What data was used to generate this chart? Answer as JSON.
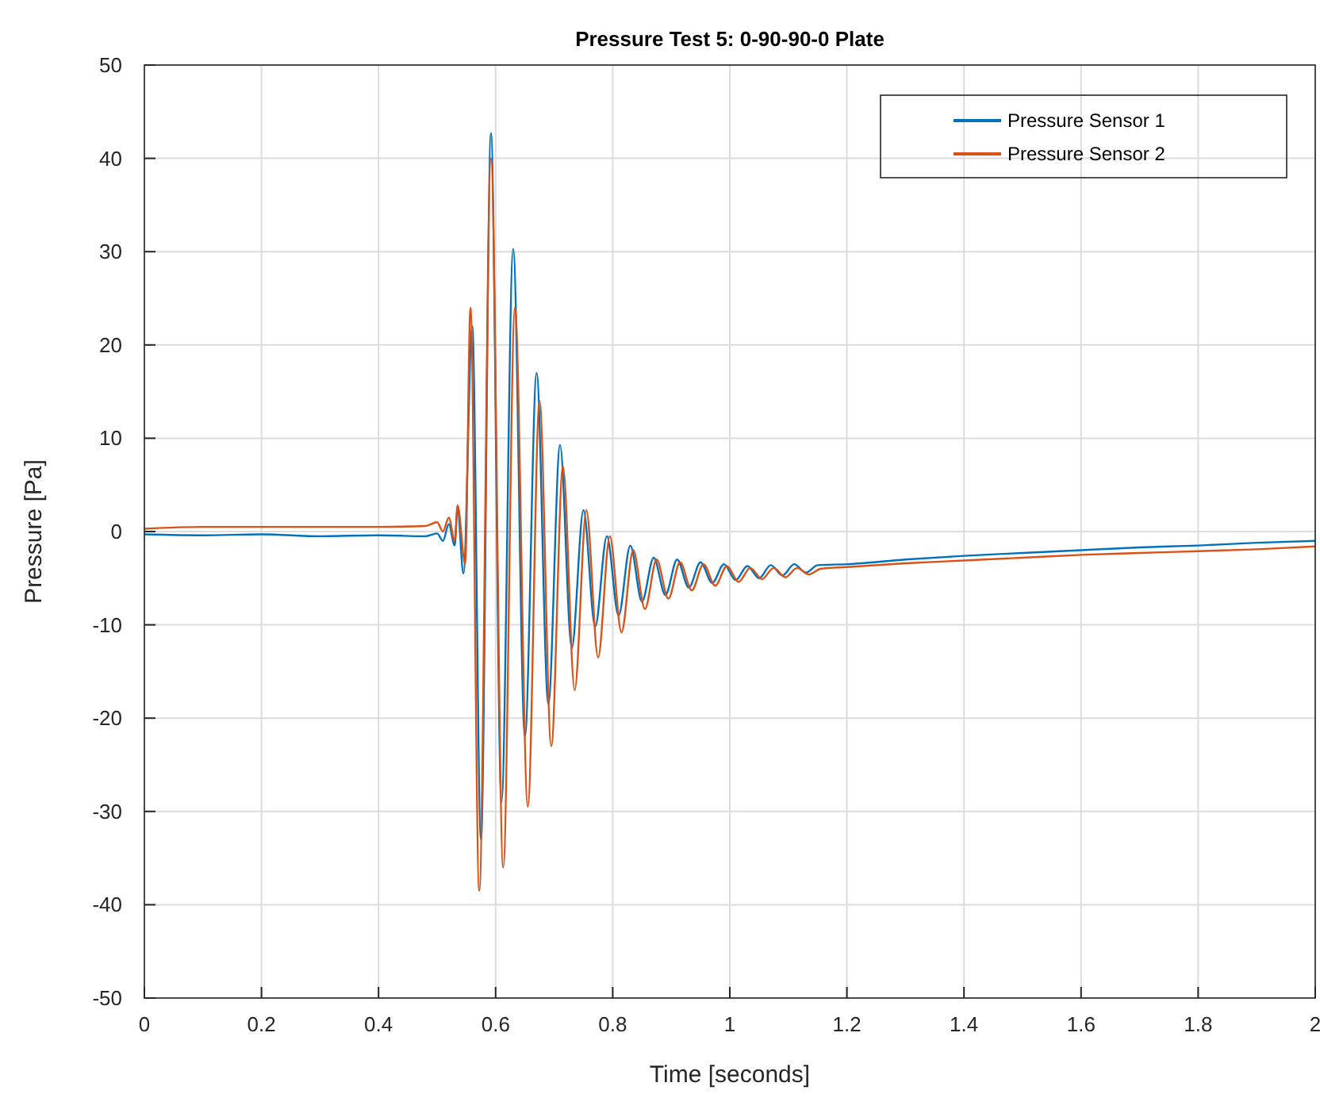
{
  "chart_data": {
    "type": "line",
    "title": "Pressure Test 5: 0-90-90-0 Plate",
    "xlabel": "Time [seconds]",
    "ylabel": "Pressure [Pa]",
    "xlim": [
      0,
      2
    ],
    "xticks": [
      0,
      0.2,
      0.4,
      0.6,
      0.8,
      1,
      1.2,
      1.4,
      1.6,
      1.8,
      2
    ],
    "ylim": [
      -50,
      50
    ],
    "yticks": [
      -50,
      -40,
      -30,
      -20,
      -10,
      0,
      10,
      20,
      30,
      40,
      50
    ],
    "grid": true,
    "legend": "top right",
    "series": [
      {
        "name": "Pressure Sensor 1",
        "color": "#0072bd",
        "x": [
          0,
          0.1,
          0.2,
          0.3,
          0.4,
          0.48,
          0.5,
          0.51,
          0.52,
          0.53,
          0.535,
          0.545,
          0.56,
          0.575,
          0.592,
          0.61,
          0.63,
          0.65,
          0.67,
          0.69,
          0.71,
          0.73,
          0.75,
          0.77,
          0.79,
          0.81,
          0.83,
          0.85,
          0.87,
          0.89,
          0.91,
          0.93,
          0.95,
          0.97,
          0.99,
          1.01,
          1.03,
          1.05,
          1.07,
          1.09,
          1.11,
          1.13,
          1.15,
          1.2,
          1.3,
          1.4,
          1.5,
          1.6,
          1.7,
          1.8,
          1.9,
          2
        ],
        "values": [
          -0.3,
          -0.4,
          -0.3,
          -0.5,
          -0.4,
          -0.5,
          -0.2,
          -1,
          0.8,
          -1.5,
          2.5,
          -4.5,
          22,
          -33,
          42.7,
          -29,
          30.3,
          -22,
          17,
          -18.5,
          9.3,
          -12.5,
          2.3,
          -10.2,
          -0.5,
          -9,
          -1.5,
          -7.5,
          -2.8,
          -6.8,
          -3,
          -6,
          -3.3,
          -5.5,
          -3.5,
          -5.2,
          -3.7,
          -5,
          -3.6,
          -4.7,
          -3.5,
          -4.4,
          -3.6,
          -3.5,
          -3,
          -2.6,
          -2.3,
          -2,
          -1.7,
          -1.5,
          -1.2,
          -1
        ]
      },
      {
        "name": "Pressure Sensor 2",
        "color": "#d95319",
        "x": [
          0,
          0.1,
          0.2,
          0.3,
          0.4,
          0.48,
          0.5,
          0.51,
          0.52,
          0.53,
          0.535,
          0.548,
          0.557,
          0.572,
          0.592,
          0.613,
          0.633,
          0.655,
          0.675,
          0.695,
          0.715,
          0.735,
          0.755,
          0.775,
          0.795,
          0.815,
          0.835,
          0.855,
          0.875,
          0.895,
          0.915,
          0.935,
          0.955,
          0.975,
          0.995,
          1.015,
          1.035,
          1.055,
          1.075,
          1.095,
          1.115,
          1.135,
          1.155,
          1.2,
          1.3,
          1.4,
          1.5,
          1.6,
          1.7,
          1.8,
          1.9,
          2
        ],
        "values": [
          0.3,
          0.5,
          0.5,
          0.5,
          0.5,
          0.6,
          1,
          0,
          1.5,
          -1,
          2.8,
          -3.5,
          24,
          -38.5,
          40,
          -36,
          24,
          -29.5,
          14,
          -23,
          7,
          -17,
          2.3,
          -13.5,
          -0.5,
          -10.8,
          -2,
          -8.3,
          -3,
          -7.2,
          -3.3,
          -6.3,
          -3.5,
          -5.8,
          -3.7,
          -5.4,
          -3.9,
          -5.1,
          -3.9,
          -4.9,
          -3.9,
          -4.6,
          -4,
          -3.8,
          -3.4,
          -3.1,
          -2.8,
          -2.5,
          -2.3,
          -2.1,
          -1.9,
          -1.6
        ]
      }
    ]
  }
}
